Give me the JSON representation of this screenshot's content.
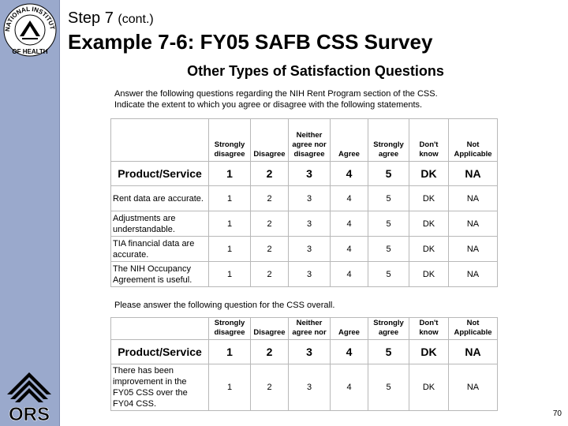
{
  "seal": {
    "text": "NATIONAL INSTITUTES OF HEALTH"
  },
  "logo": {
    "text": "ORS"
  },
  "header": {
    "step": "Step 7",
    "step_cont": "(cont.)",
    "title": "Example 7-6: FY05 SAFB CSS Survey"
  },
  "subtitle": "Other Types of Satisfaction Questions",
  "instructions": [
    "Answer the following questions regarding the NIH Rent Program section of the CSS.",
    "Indicate the extent to which you agree or disagree with the following statements."
  ],
  "table1": {
    "headers": [
      "Strongly disagree",
      "Disagree",
      "Neither agree nor disagree",
      "Agree",
      "Strongly agree",
      "Don't know",
      "Not Applicable"
    ],
    "product_label": "Product/Service",
    "scale": [
      "1",
      "2",
      "3",
      "4",
      "5",
      "DK",
      "NA"
    ],
    "rows": [
      "Rent data are accurate.",
      "Adjustments are understandable.",
      "TIA financial data are accurate.",
      "The NIH Occupancy Agreement is useful."
    ]
  },
  "overall_question": "Please answer the following question for the CSS overall.",
  "table2": {
    "headers": [
      "Strongly disagree",
      "Disagree",
      "Neither agree nor",
      "Agree",
      "Strongly agree",
      "Don't know",
      "Not Applicable"
    ],
    "product_label": "Product/Service",
    "scale": [
      "1",
      "2",
      "3",
      "4",
      "5",
      "DK",
      "NA"
    ],
    "rows": [
      "There has been improvement in the FY05 CSS over the FY04 CSS."
    ]
  },
  "page_number": "70",
  "colors": {
    "sidebar": "#9aa9cc",
    "grid": "#b8b8b8"
  }
}
